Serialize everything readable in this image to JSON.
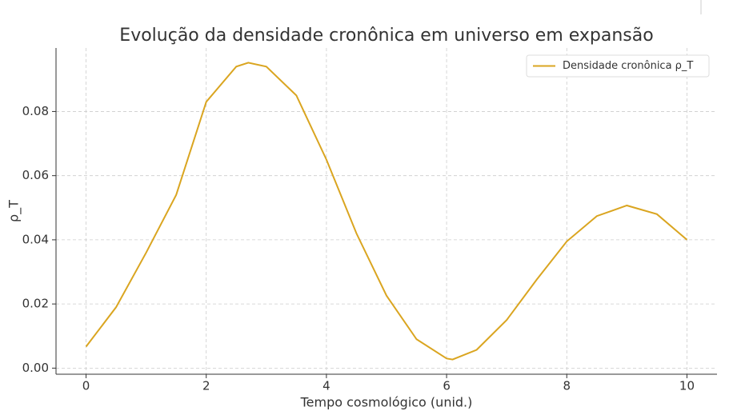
{
  "chart_data": {
    "type": "line",
    "title": "Evolução da densidade cronônica em universo em expansão",
    "x_label": "Tempo cosmológico (unid.)",
    "y_label": "ρ_T",
    "x": [
      0,
      0.5,
      1,
      1.5,
      2,
      2.5,
      2.7,
      3,
      3.5,
      4,
      4.5,
      5,
      5.5,
      6,
      6.1,
      6.5,
      7,
      7.5,
      8,
      8.5,
      9,
      9.5,
      10
    ],
    "series": [
      {
        "name": "Densidade cronônica ρ_T",
        "color": "#daa520",
        "values": [
          0.0067,
          0.019,
          0.036,
          0.054,
          0.083,
          0.094,
          0.0952,
          0.094,
          0.085,
          0.065,
          0.042,
          0.0226,
          0.009,
          0.003,
          0.0027,
          0.0057,
          0.015,
          0.0276,
          0.0395,
          0.0474,
          0.0507,
          0.048,
          0.04
        ]
      }
    ],
    "xlim": [
      -0.5,
      10.5
    ],
    "ylim": [
      -0.0019,
      0.0998
    ],
    "xticks": [
      0,
      2,
      4,
      6,
      8,
      10
    ],
    "yticks": [
      {
        "value": 0,
        "label": "0.00"
      },
      {
        "value": 0.02,
        "label": "0.02"
      },
      {
        "value": 0.04,
        "label": "0.04"
      },
      {
        "value": 0.06,
        "label": "0.06"
      },
      {
        "value": 0.08,
        "label": "0.08"
      }
    ],
    "grid": true,
    "legend": "upper right"
  }
}
